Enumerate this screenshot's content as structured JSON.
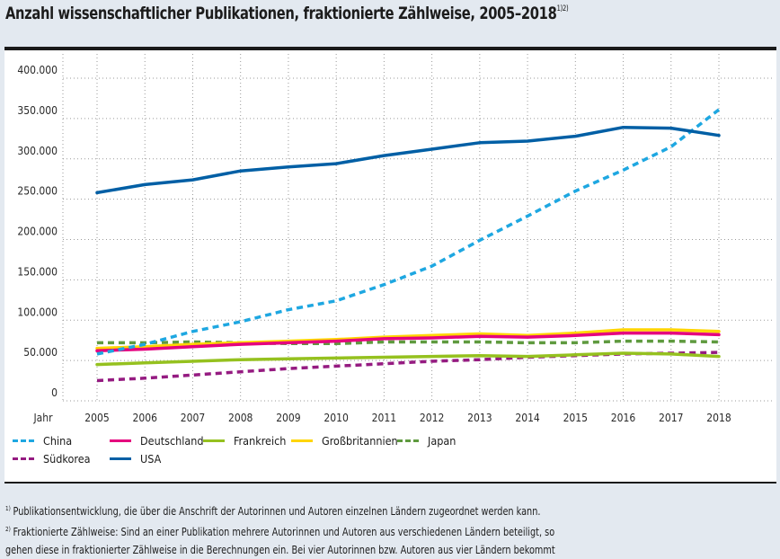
{
  "title": {
    "text": "Anzahl wissenschaftlicher Publikationen, fraktionierte Zählweise, 2005–2018",
    "superscript": "1)2)"
  },
  "chart_data": {
    "type": "line",
    "title": "Anzahl wissenschaftlicher Publikationen, fraktionierte Zählweise, 2005–2018",
    "xlabel": "Jahr",
    "ylabel": "",
    "x": [
      2005,
      2006,
      2007,
      2008,
      2009,
      2010,
      2011,
      2012,
      2013,
      2014,
      2015,
      2016,
      2017,
      2018
    ],
    "ylim": [
      0,
      400000
    ],
    "yticks": [
      0,
      50000,
      100000,
      150000,
      200000,
      250000,
      300000,
      350000,
      400000
    ],
    "ytick_labels": [
      "0",
      "50.000",
      "100.000",
      "150.000",
      "200.000",
      "250.000",
      "300.000",
      "350.000",
      "400.000"
    ],
    "xtick_labels": [
      "2005",
      "2006",
      "2007",
      "2008",
      "2009",
      "2010",
      "2011",
      "2012",
      "2013",
      "2014",
      "2015",
      "2016",
      "2017",
      "2018"
    ],
    "grid": true,
    "legend_position": "bottom",
    "series": [
      {
        "name": "China",
        "color": "#1ea7e1",
        "dashed": true,
        "values": [
          48000,
          60000,
          76000,
          88000,
          103000,
          114000,
          134000,
          157000,
          189000,
          219000,
          250000,
          276000,
          305000,
          351000
        ]
      },
      {
        "name": "Deutschland",
        "color": "#e5007e",
        "dashed": false,
        "values": [
          52000,
          54000,
          57000,
          60000,
          62000,
          64000,
          67000,
          68000,
          70000,
          69000,
          71000,
          74000,
          74000,
          72000
        ]
      },
      {
        "name": "Frankreich",
        "color": "#95c11f",
        "dashed": false,
        "values": [
          35000,
          37000,
          39000,
          41000,
          42000,
          43000,
          44000,
          45000,
          46000,
          45000,
          47000,
          49000,
          48000,
          45000
        ]
      },
      {
        "name": "Großbritannien",
        "color": "#ffd500",
        "dashed": false,
        "values": [
          55000,
          57000,
          60000,
          62000,
          64000,
          66000,
          69000,
          71000,
          73000,
          71000,
          74000,
          78000,
          78000,
          76000
        ]
      },
      {
        "name": "Japan",
        "color": "#5f9a3f",
        "dashed": true,
        "values": [
          62000,
          62000,
          63000,
          62000,
          61000,
          61000,
          63000,
          63000,
          63000,
          62000,
          62000,
          64000,
          64000,
          63000
        ]
      },
      {
        "name": "Südkorea",
        "color": "#951b81",
        "dashed": true,
        "values": [
          15000,
          18000,
          22000,
          26000,
          30000,
          33000,
          36000,
          39000,
          41000,
          44000,
          46000,
          48000,
          49000,
          50000
        ]
      },
      {
        "name": "USA",
        "color": "#005fa5",
        "dashed": false,
        "values": [
          248000,
          258000,
          264000,
          275000,
          280000,
          284000,
          294000,
          302000,
          310000,
          312000,
          318000,
          329000,
          328000,
          319000
        ]
      }
    ]
  },
  "footnotes": [
    {
      "mark": "1)",
      "text": "Publikationsentwicklung, die über die Anschrift der Autorinnen und Autoren einzelnen Ländern zugeordnet werden kann."
    },
    {
      "mark": "2)",
      "text": "Fraktionierte Zählweise: Sind an einer Publikation mehrere Autorinnen und Autoren aus verschiedenen Ländern beteiligt, so"
    },
    {
      "mark": "",
      "text": "gehen diese in fraktionierter Zählweise in die Berechnungen ein. Bei vier Autorinnen bzw. Autoren aus vier Ländern bekommt"
    }
  ]
}
